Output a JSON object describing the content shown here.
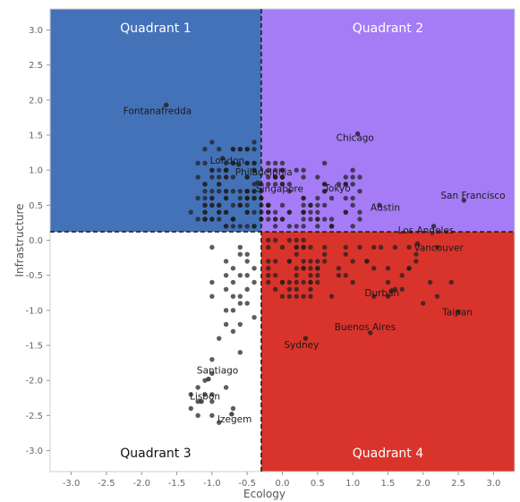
{
  "chart_data": {
    "type": "scatter",
    "xlabel": "Ecology",
    "ylabel": "Infrastructure",
    "xlim": [
      -3.3,
      3.3
    ],
    "ylim": [
      -3.3,
      3.3
    ],
    "xticks": [
      "-3.0",
      "-2.5",
      "-2.0",
      "-1.5",
      "-1.0",
      "-0.5",
      "0.0",
      "0.5",
      "1.0",
      "1.5",
      "2.0",
      "2.5",
      "3.0"
    ],
    "yticks": [
      "3.0",
      "2.5",
      "2.0",
      "1.5",
      "1.0",
      "0.5",
      "0.0",
      "-0.5",
      "-1.0",
      "-1.5",
      "-2.0",
      "-2.5",
      "-3.0"
    ],
    "divider": {
      "x": -0.3,
      "y": 0.12
    },
    "colors": {
      "quadrant1": "#4472b8",
      "quadrant2": "#a57cf5",
      "quadrant3": "#ffffff",
      "quadrant4": "#d9342b",
      "point": "#1f1f1f"
    },
    "quadrants": [
      {
        "label": "Quadrant 1",
        "label_color": "#ffffff"
      },
      {
        "label": "Quadrant 2",
        "label_color": "#ffffff"
      },
      {
        "label": "Quadrant 3",
        "label_color": "#111111"
      },
      {
        "label": "Quadrant 4",
        "label_color": "#ffffff"
      }
    ],
    "labeled_points": [
      {
        "name": "Fontanafredda",
        "x": -1.65,
        "y": 1.93
      },
      {
        "name": "London",
        "x": -0.85,
        "y": 1.17
      },
      {
        "name": "Philadelphia",
        "x": -0.62,
        "y": 1.08
      },
      {
        "name": "Chicago",
        "x": 1.07,
        "y": 1.52
      },
      {
        "name": "Singapore",
        "x": -0.35,
        "y": 0.82
      },
      {
        "name": "Tokyo",
        "x": 0.9,
        "y": 0.8
      },
      {
        "name": "San Francisco",
        "x": 2.58,
        "y": 0.57
      },
      {
        "name": "Austin",
        "x": 1.38,
        "y": 0.5
      },
      {
        "name": "Los Angeles",
        "x": 2.15,
        "y": 0.2
      },
      {
        "name": "Vancouver",
        "x": 1.92,
        "y": -0.05
      },
      {
        "name": "Durban",
        "x": 1.55,
        "y": -0.72
      },
      {
        "name": "Taipan",
        "x": 2.5,
        "y": -1.02
      },
      {
        "name": "Buenos Aires",
        "x": 1.25,
        "y": -1.32
      },
      {
        "name": "Sydney",
        "x": 0.33,
        "y": -1.4
      },
      {
        "name": "Santiago",
        "x": -1.05,
        "y": -1.98
      },
      {
        "name": "Lisbon",
        "x": -1.15,
        "y": -2.3
      },
      {
        "name": "Izegem",
        "x": -0.72,
        "y": -2.48
      }
    ],
    "points": [
      [
        -0.2,
        1.0
      ],
      [
        0.6,
        1.1
      ],
      [
        -0.4,
        0.4
      ],
      [
        0.7,
        0.2
      ],
      [
        -0.1,
        0.9
      ],
      [
        0.3,
        0.9
      ],
      [
        0.1,
        0.7
      ],
      [
        0.1,
        0.4
      ],
      [
        -0.3,
        0.3
      ],
      [
        1.0,
        1.0
      ],
      [
        0.1,
        0.2
      ],
      [
        0.9,
        0.8
      ],
      [
        -0.7,
        1.1
      ],
      [
        0.4,
        0.3
      ],
      [
        0.8,
        0.8
      ],
      [
        -0.2,
        0.5
      ],
      [
        -0.2,
        1.1
      ],
      [
        1.0,
        0.9
      ],
      [
        -0.3,
        0.3
      ],
      [
        -0.5,
        0.7
      ],
      [
        0.5,
        0.3
      ],
      [
        0.0,
        1.0
      ],
      [
        0.0,
        1.1
      ],
      [
        0.2,
        0.2
      ],
      [
        -0.2,
        0.5
      ],
      [
        1.1,
        0.7
      ],
      [
        1.0,
        0.5
      ],
      [
        -0.1,
        1.0
      ],
      [
        0.1,
        0.8
      ],
      [
        -0.5,
        1.1
      ],
      [
        -0.7,
        1.1
      ],
      [
        0.0,
        1.0
      ],
      [
        0.4,
        0.5
      ],
      [
        0.3,
        0.2
      ],
      [
        0.7,
        0.2
      ],
      [
        -0.2,
        0.4
      ],
      [
        0.6,
        0.7
      ],
      [
        -0.4,
        1.1
      ],
      [
        -0.5,
        0.6
      ],
      [
        -0.3,
        0.5
      ],
      [
        0.1,
        0.4
      ],
      [
        0.0,
        0.9
      ],
      [
        0.5,
        0.3
      ],
      [
        1.1,
        0.4
      ],
      [
        0.3,
        1.0
      ],
      [
        0.3,
        0.4
      ],
      [
        0.3,
        0.6
      ],
      [
        0.9,
        0.4
      ],
      [
        -0.7,
        0.9
      ],
      [
        -0.7,
        0.3
      ],
      [
        -0.8,
        0.2
      ],
      [
        -0.7,
        0.3
      ],
      [
        0.2,
        1.0
      ],
      [
        -0.2,
        0.5
      ],
      [
        1.1,
        0.3
      ],
      [
        -0.3,
        0.4
      ],
      [
        1.0,
        0.6
      ],
      [
        -0.1,
        0.3
      ],
      [
        0.5,
        0.6
      ],
      [
        -0.6,
        0.7
      ],
      [
        0.5,
        0.4
      ],
      [
        0.0,
        0.3
      ],
      [
        -0.4,
        0.7
      ],
      [
        -0.1,
        0.4
      ],
      [
        0.6,
        0.7
      ],
      [
        0.3,
        0.4
      ],
      [
        0.5,
        0.9
      ],
      [
        -0.1,
        0.9
      ],
      [
        -0.4,
        0.6
      ],
      [
        0.4,
        0.5
      ],
      [
        -0.1,
        0.8
      ],
      [
        -0.2,
        0.9
      ],
      [
        0.7,
        0.3
      ],
      [
        0.3,
        0.5
      ],
      [
        -0.1,
        0.9
      ],
      [
        0.9,
        0.6
      ],
      [
        -0.3,
        0.7
      ],
      [
        -0.1,
        0.2
      ],
      [
        0.6,
        0.3
      ],
      [
        0.0,
        0.9
      ],
      [
        -0.8,
        1.0
      ],
      [
        -0.5,
        0.9
      ],
      [
        0.7,
        0.2
      ],
      [
        0.5,
        0.2
      ],
      [
        -0.7,
        0.3
      ],
      [
        0.0,
        0.3
      ],
      [
        1.1,
        0.9
      ],
      [
        0.9,
        0.9
      ],
      [
        0.3,
        0.6
      ],
      [
        -0.2,
        0.3
      ],
      [
        0.3,
        0.3
      ],
      [
        0.0,
        0.8
      ],
      [
        -0.5,
        0.4
      ],
      [
        -0.5,
        0.7
      ],
      [
        -0.3,
        0.8
      ],
      [
        -0.2,
        0.4
      ],
      [
        -0.2,
        0.8
      ],
      [
        -0.3,
        0.6
      ],
      [
        -0.4,
        1.0
      ],
      [
        0.9,
        0.4
      ],
      [
        0.4,
        0.4
      ],
      [
        -0.8,
        0.2
      ],
      [
        0.6,
        0.5
      ],
      [
        0.0,
        0.8
      ],
      [
        0.6,
        0.8
      ],
      [
        1.0,
        0.2
      ],
      [
        -0.3,
        0.6
      ],
      [
        -0.4,
        1.1
      ],
      [
        0.7,
        0.6
      ],
      [
        -0.8,
        0.7
      ],
      [
        0.0,
        0.5
      ],
      [
        -0.1,
        0.3
      ],
      [
        -0.6,
        0.5
      ],
      [
        0.5,
        0.5
      ],
      [
        1.0,
        0.8
      ],
      [
        -0.1,
        1.1
      ],
      [
        0.3,
        0.4
      ],
      [
        0.6,
        0.8
      ],
      [
        0.0,
        0.9
      ],
      [
        -0.8,
        0.7
      ],
      [
        -0.6,
        1.3
      ],
      [
        -0.5,
        1.3
      ],
      [
        -0.8,
        1.0
      ],
      [
        -1.2,
        1.1
      ],
      [
        -0.7,
        1.3
      ],
      [
        -0.5,
        0.6
      ],
      [
        -1.0,
        0.9
      ],
      [
        -1.0,
        1.4
      ],
      [
        -1.1,
        0.3
      ],
      [
        -1.1,
        0.5
      ],
      [
        -0.8,
        0.9
      ],
      [
        -1.1,
        0.6
      ],
      [
        -1.1,
        0.8
      ],
      [
        -1.1,
        0.3
      ],
      [
        -1.0,
        0.7
      ],
      [
        -1.3,
        0.4
      ],
      [
        -1.1,
        1.1
      ],
      [
        -0.9,
        0.3
      ],
      [
        -0.4,
        1.4
      ],
      [
        -0.6,
        0.5
      ],
      [
        -0.9,
        0.5
      ],
      [
        -0.9,
        0.8
      ],
      [
        -0.8,
        0.4
      ],
      [
        -0.8,
        1.1
      ],
      [
        -1.0,
        0.5
      ],
      [
        -1.0,
        0.3
      ],
      [
        -0.9,
        0.4
      ],
      [
        -1.0,
        1.0
      ],
      [
        -0.5,
        0.9
      ],
      [
        -0.5,
        1.1
      ],
      [
        -1.0,
        0.6
      ],
      [
        -0.4,
        1.0
      ],
      [
        -0.4,
        0.6
      ],
      [
        -0.5,
        0.5
      ],
      [
        -1.0,
        0.3
      ],
      [
        -1.0,
        1.0
      ],
      [
        -0.6,
        0.2
      ],
      [
        -0.5,
        0.6
      ],
      [
        -1.2,
        0.6
      ],
      [
        -0.9,
        0.4
      ],
      [
        -0.7,
        0.7
      ],
      [
        -0.9,
        1.3
      ],
      [
        -0.6,
        0.5
      ],
      [
        -1.2,
        0.3
      ],
      [
        -1.1,
        0.8
      ],
      [
        -0.6,
        1.3
      ],
      [
        -0.9,
        1.0
      ],
      [
        -1.2,
        0.9
      ],
      [
        -1.0,
        0.5
      ],
      [
        -0.4,
        1.3
      ],
      [
        -0.4,
        0.7
      ],
      [
        -0.5,
        1.3
      ],
      [
        -0.7,
        0.5
      ],
      [
        -0.4,
        0.2
      ],
      [
        -1.1,
        1.3
      ],
      [
        -0.9,
        0.5
      ],
      [
        -0.9,
        0.8
      ],
      [
        -0.8,
        1.0
      ],
      [
        -0.8,
        0.9
      ],
      [
        -0.5,
        0.2
      ],
      [
        -0.5,
        0.4
      ],
      [
        -0.7,
        0.2
      ],
      [
        -0.4,
        0.8
      ],
      [
        -0.8,
        0.6
      ],
      [
        -0.7,
        0.3
      ],
      [
        -0.9,
        0.9
      ],
      [
        -0.9,
        0.7
      ],
      [
        -1.0,
        0.6
      ],
      [
        -1.1,
        0.7
      ],
      [
        -1.1,
        0.4
      ],
      [
        -0.8,
        1.0
      ],
      [
        -0.8,
        0.6
      ],
      [
        -1.1,
        0.5
      ],
      [
        -0.4,
        0.2
      ],
      [
        -1.1,
        0.3
      ],
      [
        -1.1,
        0.4
      ],
      [
        -0.7,
        1.3
      ],
      [
        -0.8,
        0.4
      ],
      [
        -0.5,
        0.7
      ],
      [
        -0.6,
        0.6
      ],
      [
        0.3,
        -0.3
      ],
      [
        -0.2,
        -0.4
      ],
      [
        0.2,
        -0.6
      ],
      [
        -0.2,
        -0.3
      ],
      [
        0.0,
        -0.1
      ],
      [
        0.1,
        0.0
      ],
      [
        0.3,
        0.0
      ],
      [
        0.3,
        -0.6
      ],
      [
        0.1,
        -0.6
      ],
      [
        0.5,
        -0.6
      ],
      [
        0.1,
        -0.8
      ],
      [
        0.4,
        -0.3
      ],
      [
        -0.2,
        -0.5
      ],
      [
        0.2,
        -0.2
      ],
      [
        0.2,
        -0.5
      ],
      [
        0.1,
        -0.3
      ],
      [
        0.3,
        -0.1
      ],
      [
        0.5,
        -0.5
      ],
      [
        0.2,
        0.0
      ],
      [
        0.2,
        -0.4
      ],
      [
        -0.2,
        0.0
      ],
      [
        0.2,
        -0.1
      ],
      [
        0.5,
        -0.4
      ],
      [
        0.3,
        -0.4
      ],
      [
        0.3,
        -0.8
      ],
      [
        0.2,
        -0.1
      ],
      [
        0.4,
        -0.6
      ],
      [
        0.4,
        -0.4
      ],
      [
        0.4,
        -0.5
      ],
      [
        0.4,
        -0.7
      ],
      [
        0.2,
        -0.8
      ],
      [
        0.0,
        -0.8
      ],
      [
        0.4,
        -0.1
      ],
      [
        0.0,
        -0.6
      ],
      [
        0.1,
        -0.7
      ],
      [
        0.1,
        -0.3
      ],
      [
        0.5,
        -0.4
      ],
      [
        -0.2,
        -0.1
      ],
      [
        0.3,
        -0.1
      ],
      [
        -0.1,
        -0.5
      ],
      [
        0.2,
        -0.7
      ],
      [
        -0.2,
        -0.6
      ],
      [
        -0.1,
        -0.7
      ],
      [
        0.4,
        -0.6
      ],
      [
        -0.1,
        -0.3
      ],
      [
        0.3,
        -0.4
      ],
      [
        -0.1,
        0.0
      ],
      [
        0.4,
        -0.8
      ],
      [
        0.5,
        -0.3
      ],
      [
        0.0,
        -0.6
      ],
      [
        1.3,
        -0.1
      ],
      [
        0.8,
        -0.5
      ],
      [
        1.3,
        -0.4
      ],
      [
        2.0,
        -0.9
      ],
      [
        1.0,
        -0.6
      ],
      [
        1.6,
        -0.7
      ],
      [
        2.2,
        -0.8
      ],
      [
        1.5,
        -0.4
      ],
      [
        1.8,
        -0.4
      ],
      [
        1.8,
        -0.1
      ],
      [
        0.6,
        -0.1
      ],
      [
        0.9,
        -0.1
      ],
      [
        1.2,
        -0.3
      ],
      [
        1.4,
        -0.1
      ],
      [
        1.1,
        -0.1
      ],
      [
        1.5,
        -0.8
      ],
      [
        0.7,
        -0.8
      ],
      [
        1.7,
        -0.5
      ],
      [
        1.9,
        -0.2
      ],
      [
        0.8,
        -0.4
      ],
      [
        0.6,
        -0.3
      ],
      [
        1.6,
        -0.1
      ],
      [
        1.8,
        -0.4
      ],
      [
        2.4,
        -0.6
      ],
      [
        2.1,
        -0.6
      ],
      [
        2.2,
        -0.1
      ],
      [
        1.5,
        -0.6
      ],
      [
        0.6,
        -0.2
      ],
      [
        1.9,
        -0.3
      ],
      [
        1.3,
        -0.8
      ],
      [
        0.9,
        -0.5
      ],
      [
        1.2,
        -0.3
      ],
      [
        1.0,
        -0.3
      ],
      [
        0.9,
        -0.2
      ],
      [
        1.7,
        -0.7
      ],
      [
        -0.6,
        -0.1
      ],
      [
        -0.7,
        -0.6
      ],
      [
        -1.0,
        -0.8
      ],
      [
        -0.6,
        -0.9
      ],
      [
        -0.7,
        -1.0
      ],
      [
        -0.5,
        -0.2
      ],
      [
        -0.6,
        -0.2
      ],
      [
        -0.8,
        -0.7
      ],
      [
        -1.0,
        -0.6
      ],
      [
        -0.8,
        -0.5
      ],
      [
        -0.4,
        -0.6
      ],
      [
        -0.8,
        -0.3
      ],
      [
        -0.5,
        -0.5
      ],
      [
        -0.4,
        -0.4
      ],
      [
        -0.6,
        -0.5
      ],
      [
        -0.4,
        -1.1
      ],
      [
        -0.8,
        -1.2
      ],
      [
        -0.5,
        -0.7
      ],
      [
        -0.5,
        -0.9
      ],
      [
        -0.6,
        -1.2
      ],
      [
        -0.7,
        -0.8
      ],
      [
        -0.8,
        -1.0
      ],
      [
        -0.6,
        -0.8
      ],
      [
        -0.9,
        -1.4
      ],
      [
        -0.7,
        -1.3
      ],
      [
        -0.5,
        -0.3
      ],
      [
        -1.0,
        -0.1
      ],
      [
        -0.7,
        -0.4
      ],
      [
        -1.3,
        -2.2
      ],
      [
        -1.2,
        -2.5
      ],
      [
        -1.0,
        -2.3
      ],
      [
        -0.8,
        -2.1
      ],
      [
        -1.3,
        -2.4
      ],
      [
        -1.1,
        -2.2
      ],
      [
        -1.1,
        -2.0
      ],
      [
        -1.0,
        -2.2
      ],
      [
        -1.0,
        -2.5
      ],
      [
        -0.6,
        -1.6
      ],
      [
        -1.0,
        -1.9
      ],
      [
        -1.2,
        -2.3
      ],
      [
        -0.7,
        -2.4
      ],
      [
        -1.2,
        -2.1
      ],
      [
        -0.9,
        -2.6
      ],
      [
        -1.0,
        -1.7
      ]
    ]
  }
}
